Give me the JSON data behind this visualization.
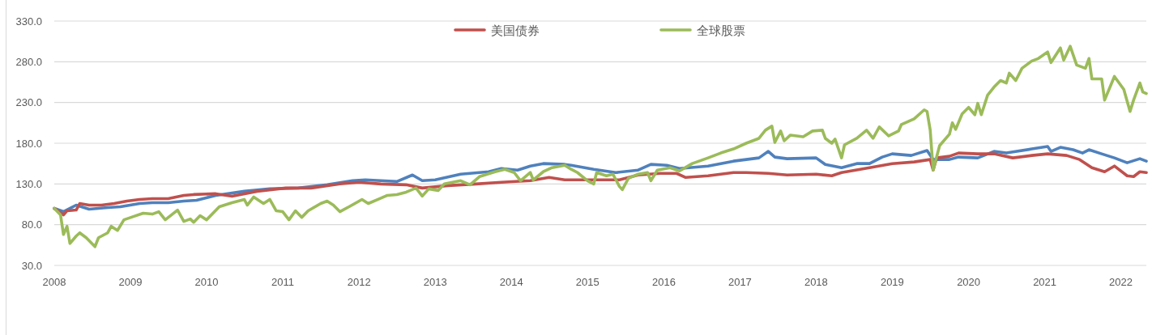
{
  "chart_data": {
    "type": "line",
    "xlim": [
      "2008-09-01",
      "2023-01-01"
    ],
    "xticks": [
      {
        "value": "2008-09-01",
        "label": "2008"
      },
      {
        "value": "2009-09-01",
        "label": "2009"
      },
      {
        "value": "2010-09-01",
        "label": "2010"
      },
      {
        "value": "2011-09-01",
        "label": "2011"
      },
      {
        "value": "2012-09-01",
        "label": "2012"
      },
      {
        "value": "2013-09-01",
        "label": "2013"
      },
      {
        "value": "2014-09-01",
        "label": "2014"
      },
      {
        "value": "2015-09-01",
        "label": "2015"
      },
      {
        "value": "2016-09-01",
        "label": "2016"
      },
      {
        "value": "2017-09-01",
        "label": "2017"
      },
      {
        "value": "2018-09-01",
        "label": "2018"
      },
      {
        "value": "2019-09-01",
        "label": "2019"
      },
      {
        "value": "2020-09-01",
        "label": "2020"
      },
      {
        "value": "2021-09-01",
        "label": "2021"
      },
      {
        "value": "2022-09-01",
        "label": "2022"
      }
    ],
    "ylim": [
      30,
      330
    ],
    "yticks": [
      {
        "value": 30,
        "label": "30.0"
      },
      {
        "value": 80,
        "label": "80.0"
      },
      {
        "value": 130,
        "label": "130.0"
      },
      {
        "value": 180,
        "label": "180.0"
      },
      {
        "value": 230,
        "label": "230.0"
      },
      {
        "value": 280,
        "label": "280.0"
      },
      {
        "value": 330,
        "label": "330.0"
      }
    ],
    "grid": "y",
    "legend": "top",
    "series": [
      {
        "color": "#4f81bd",
        "x": [
          "2008-09-01",
          "2008-10-15",
          "2008-12-15",
          "2009-02-15",
          "2009-05-15",
          "2009-07-15",
          "2009-10-15",
          "2009-12-15",
          "2010-03-01",
          "2010-05-15",
          "2010-07-15",
          "2010-10-15",
          "2011-03-01",
          "2011-07-01",
          "2011-11-15",
          "2012-04-01",
          "2012-08-01",
          "2012-10-01",
          "2012-12-15",
          "2013-03-01",
          "2013-05-15",
          "2013-07-01",
          "2013-09-01",
          "2014-01-01",
          "2014-05-15",
          "2014-07-15",
          "2014-10-01",
          "2014-12-01",
          "2015-02-01",
          "2015-05-15",
          "2015-06-15",
          "2015-10-01",
          "2016-01-15",
          "2016-05-01",
          "2016-07-01",
          "2016-09-15",
          "2016-11-15",
          "2017-04-01",
          "2017-08-01",
          "2017-12-01",
          "2018-01-15",
          "2018-02-15",
          "2018-04-15",
          "2018-09-01",
          "2018-10-15",
          "2019-01-01",
          "2019-03-15",
          "2019-05-15",
          "2019-07-15",
          "2019-09-01",
          "2019-12-01",
          "2020-02-15",
          "2020-03-15",
          "2020-06-01",
          "2020-07-15",
          "2020-10-15",
          "2021-01-01",
          "2021-03-01",
          "2021-07-01",
          "2021-09-15",
          "2021-10-01",
          "2021-11-15",
          "2022-01-15",
          "2022-03-01",
          "2022-04-01",
          "2022-06-01",
          "2022-08-01",
          "2022-10-01",
          "2022-12-01",
          "2023-01-01"
        ],
        "values": [
          100,
          96,
          104,
          99,
          101,
          102,
          106,
          107,
          107,
          109,
          110,
          116,
          121,
          124,
          125,
          129,
          134,
          135,
          134,
          133,
          141,
          134,
          135,
          142,
          145,
          149,
          147,
          152,
          155,
          154,
          153,
          148,
          144,
          147,
          154,
          153,
          149,
          152,
          158,
          162,
          170,
          163,
          161,
          162,
          154,
          150,
          155,
          155,
          163,
          167,
          165,
          171,
          160,
          160,
          163,
          162,
          170,
          168,
          173,
          176,
          170,
          175,
          172,
          168,
          172,
          167,
          162,
          156,
          161,
          158
        ]
      },
      {
        "name": "美国债券",
        "color": "#c0504d",
        "x": [
          "2008-09-01",
          "2008-10-15",
          "2008-11-01",
          "2008-12-15",
          "2009-01-01",
          "2009-02-15",
          "2009-04-15",
          "2009-06-15",
          "2009-08-15",
          "2009-10-15",
          "2009-12-15",
          "2010-03-01",
          "2010-05-15",
          "2010-07-01",
          "2010-10-15",
          "2011-01-01",
          "2011-05-01",
          "2011-09-15",
          "2012-01-15",
          "2012-06-01",
          "2012-09-01",
          "2012-12-15",
          "2013-04-15",
          "2013-07-01",
          "2013-11-01",
          "2014-03-15",
          "2014-07-15",
          "2014-12-01",
          "2015-03-01",
          "2015-05-15",
          "2015-10-15",
          "2016-02-01",
          "2016-05-01",
          "2016-08-15",
          "2016-11-01",
          "2016-12-15",
          "2017-04-01",
          "2017-08-01",
          "2017-10-01",
          "2018-01-15",
          "2018-04-15",
          "2018-09-01",
          "2018-11-15",
          "2019-01-01",
          "2019-05-15",
          "2019-09-01",
          "2019-12-15",
          "2020-03-01",
          "2020-03-15",
          "2020-04-01",
          "2020-06-01",
          "2020-07-15",
          "2020-10-15",
          "2021-01-01",
          "2021-04-01",
          "2021-07-01",
          "2021-09-15",
          "2021-12-15",
          "2022-02-15",
          "2022-04-15",
          "2022-06-15",
          "2022-08-01",
          "2022-10-01",
          "2022-11-01",
          "2022-12-01",
          "2023-01-01"
        ],
        "values": [
          100,
          92,
          97,
          98,
          106,
          104,
          104,
          106,
          109,
          111,
          112,
          112,
          116,
          117,
          118,
          115,
          121,
          125,
          125,
          130,
          132,
          130,
          129,
          125,
          128,
          130,
          132,
          134,
          138,
          135,
          135,
          135,
          141,
          143,
          143,
          138,
          140,
          144,
          144,
          143,
          141,
          142,
          140,
          144,
          150,
          155,
          157,
          160,
          147,
          162,
          164,
          168,
          167,
          167,
          162,
          165,
          167,
          165,
          160,
          150,
          145,
          152,
          140,
          139,
          145,
          144
        ]
      },
      {
        "name": "全球股票",
        "color": "#9bbb59",
        "x": [
          "2008-09-01",
          "2008-10-01",
          "2008-10-15",
          "2008-11-01",
          "2008-11-15",
          "2008-12-15",
          "2009-01-01",
          "2009-02-01",
          "2009-03-15",
          "2009-04-01",
          "2009-05-15",
          "2009-06-01",
          "2009-07-01",
          "2009-08-01",
          "2009-09-15",
          "2009-11-01",
          "2009-12-15",
          "2010-01-15",
          "2010-02-15",
          "2010-04-15",
          "2010-05-15",
          "2010-06-15",
          "2010-07-01",
          "2010-08-01",
          "2010-09-01",
          "2010-11-01",
          "2011-01-01",
          "2011-03-01",
          "2011-03-15",
          "2011-04-15",
          "2011-06-01",
          "2011-07-01",
          "2011-08-01",
          "2011-09-01",
          "2011-10-01",
          "2011-11-01",
          "2011-12-01",
          "2012-01-01",
          "2012-03-01",
          "2012-04-01",
          "2012-05-01",
          "2012-06-01",
          "2012-07-15",
          "2012-09-15",
          "2012-10-15",
          "2012-12-01",
          "2013-01-15",
          "2013-03-01",
          "2013-04-15",
          "2013-06-01",
          "2013-07-01",
          "2013-08-01",
          "2013-09-15",
          "2013-10-15",
          "2014-01-01",
          "2014-02-15",
          "2014-04-01",
          "2014-06-15",
          "2014-08-01",
          "2014-09-15",
          "2014-10-15",
          "2014-12-01",
          "2014-12-15",
          "2015-02-01",
          "2015-03-15",
          "2015-05-15",
          "2015-06-15",
          "2015-07-15",
          "2015-09-01",
          "2015-10-01",
          "2015-10-15",
          "2015-12-01",
          "2016-01-01",
          "2016-02-01",
          "2016-02-15",
          "2016-03-15",
          "2016-05-01",
          "2016-06-15",
          "2016-07-01",
          "2016-08-01",
          "2016-10-01",
          "2016-11-15",
          "2017-01-15",
          "2017-04-01",
          "2017-06-01",
          "2017-08-01",
          "2017-10-01",
          "2017-12-01",
          "2018-01-01",
          "2018-02-01",
          "2018-02-15",
          "2018-03-15",
          "2018-04-01",
          "2018-05-01",
          "2018-07-01",
          "2018-08-15",
          "2018-10-01",
          "2018-10-15",
          "2018-11-15",
          "2018-12-01",
          "2019-01-01",
          "2019-01-15",
          "2019-03-15",
          "2019-05-01",
          "2019-06-01",
          "2019-07-01",
          "2019-08-15",
          "2019-10-01",
          "2019-10-15",
          "2019-12-15",
          "2020-02-01",
          "2020-02-15",
          "2020-03-01",
          "2020-03-15",
          "2020-04-15",
          "2020-06-01",
          "2020-06-15",
          "2020-07-01",
          "2020-08-01",
          "2020-09-01",
          "2020-10-01",
          "2020-10-15",
          "2020-11-01",
          "2020-12-01",
          "2021-01-01",
          "2021-02-01",
          "2021-03-01",
          "2021-03-15",
          "2021-04-15",
          "2021-05-15",
          "2021-07-01",
          "2021-08-01",
          "2021-09-15",
          "2021-10-01",
          "2021-11-15",
          "2021-12-01",
          "2022-01-01",
          "2022-02-01",
          "2022-03-15",
          "2022-04-01",
          "2022-04-15",
          "2022-06-01",
          "2022-06-15",
          "2022-08-01",
          "2022-09-15",
          "2022-10-15",
          "2022-11-01",
          "2022-12-01",
          "2022-12-15",
          "2023-01-01"
        ],
        "values": [
          100,
          92,
          68,
          78,
          57,
          66,
          70,
          64,
          53,
          64,
          70,
          78,
          73,
          86,
          90,
          94,
          93,
          96,
          86,
          98,
          84,
          87,
          83,
          91,
          86,
          102,
          107,
          111,
          104,
          114,
          106,
          111,
          97,
          96,
          86,
          97,
          89,
          97,
          106,
          109,
          104,
          96,
          102,
          111,
          106,
          111,
          116,
          117,
          120,
          125,
          115,
          124,
          122,
          130,
          134,
          129,
          139,
          145,
          148,
          144,
          134,
          144,
          135,
          145,
          150,
          153,
          148,
          144,
          134,
          130,
          144,
          140,
          142,
          127,
          123,
          137,
          142,
          144,
          134,
          147,
          150,
          146,
          155,
          162,
          168,
          173,
          180,
          186,
          196,
          201,
          181,
          195,
          183,
          190,
          188,
          195,
          196,
          186,
          180,
          185,
          162,
          178,
          186,
          196,
          186,
          200,
          189,
          195,
          203,
          210,
          221,
          219,
          196,
          147,
          177,
          191,
          205,
          197,
          216,
          224,
          215,
          229,
          215,
          239,
          249,
          257,
          254,
          266,
          257,
          272,
          281,
          284,
          292,
          279,
          297,
          282,
          299,
          276,
          272,
          284,
          259,
          259,
          233,
          262,
          246,
          219,
          233,
          254,
          243,
          241
        ]
      }
    ]
  }
}
